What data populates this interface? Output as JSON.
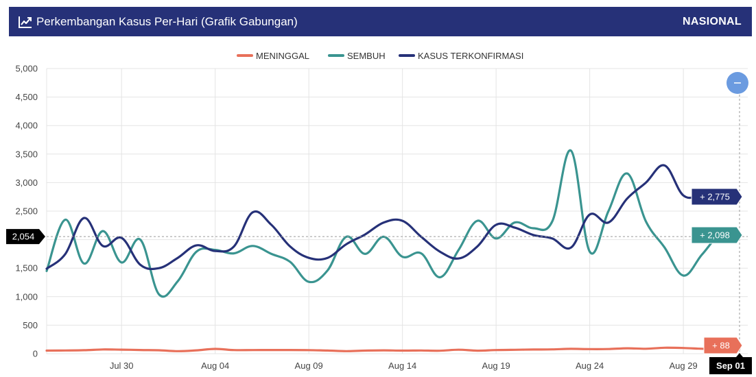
{
  "header": {
    "title": "Perkembangan Kasus Per-Hari (Grafik Gabungan)",
    "region": "NASIONAL",
    "icon": "trend-line-icon",
    "background": "#263178"
  },
  "crosshair": {
    "y_value_label": "2,054",
    "x_value_label": "Sep 01",
    "zoom_button_icon": "zoom-out-icon"
  },
  "tooltips": {
    "confirmed": "+ 2,775",
    "recovered": "+ 2,098",
    "deaths": "+ 88"
  },
  "chart_data": {
    "type": "line",
    "title": "",
    "xlabel": "",
    "ylabel": "",
    "ylim": [
      0,
      5000
    ],
    "yticks": [
      "0",
      "500",
      "1,000",
      "1,500",
      "2,000",
      "2,500",
      "3,000",
      "3,500",
      "4,000",
      "4,500",
      "5,000"
    ],
    "xtick_labels": [
      "Jul 30",
      "Aug 04",
      "Aug 09",
      "Aug 14",
      "Aug 19",
      "Aug 24",
      "Aug 29",
      "Sep 01"
    ],
    "x": [
      "Jul 26",
      "Jul 27",
      "Jul 28",
      "Jul 29",
      "Jul 30",
      "Jul 31",
      "Aug 01",
      "Aug 02",
      "Aug 03",
      "Aug 04",
      "Aug 05",
      "Aug 06",
      "Aug 07",
      "Aug 08",
      "Aug 09",
      "Aug 10",
      "Aug 11",
      "Aug 12",
      "Aug 13",
      "Aug 14",
      "Aug 15",
      "Aug 16",
      "Aug 17",
      "Aug 18",
      "Aug 19",
      "Aug 20",
      "Aug 21",
      "Aug 22",
      "Aug 23",
      "Aug 24",
      "Aug 25",
      "Aug 26",
      "Aug 27",
      "Aug 28",
      "Aug 29",
      "Aug 30",
      "Aug 31",
      "Sep 01"
    ],
    "legend_position": "top",
    "grid": true,
    "series": [
      {
        "name": "MENINGGAL",
        "color": "#e8705a",
        "values": [
          54,
          57,
          61,
          74,
          71,
          65,
          60,
          44,
          59,
          84,
          64,
          64,
          65,
          65,
          63,
          55,
          45,
          54,
          59,
          54,
          56,
          52,
          70,
          53,
          64,
          69,
          73,
          76,
          85,
          80,
          82,
          95,
          87,
          104,
          100,
          86,
          85,
          88
        ]
      },
      {
        "name": "SEMBUH",
        "color": "#3a9490",
        "values": [
          1450,
          2350,
          1580,
          2150,
          1600,
          2000,
          1040,
          1270,
          1790,
          1820,
          1760,
          1890,
          1750,
          1610,
          1260,
          1460,
          2050,
          1750,
          2050,
          1700,
          1760,
          1340,
          1820,
          2330,
          2020,
          2300,
          2200,
          2320,
          3560,
          1790,
          2500,
          3160,
          2320,
          1860,
          1370,
          1740,
          2098,
          2098
        ]
      },
      {
        "name": "KASUS TERKONFIRMASI",
        "color": "#263178",
        "values": [
          1490,
          1750,
          2380,
          1890,
          2030,
          1560,
          1500,
          1680,
          1900,
          1800,
          1880,
          2480,
          2260,
          1880,
          1680,
          1680,
          1920,
          2090,
          2300,
          2330,
          2050,
          1790,
          1670,
          1880,
          2260,
          2210,
          2080,
          2020,
          1860,
          2440,
          2300,
          2720,
          3000,
          3300,
          2775,
          2775,
          2775,
          2775
        ]
      }
    ]
  }
}
